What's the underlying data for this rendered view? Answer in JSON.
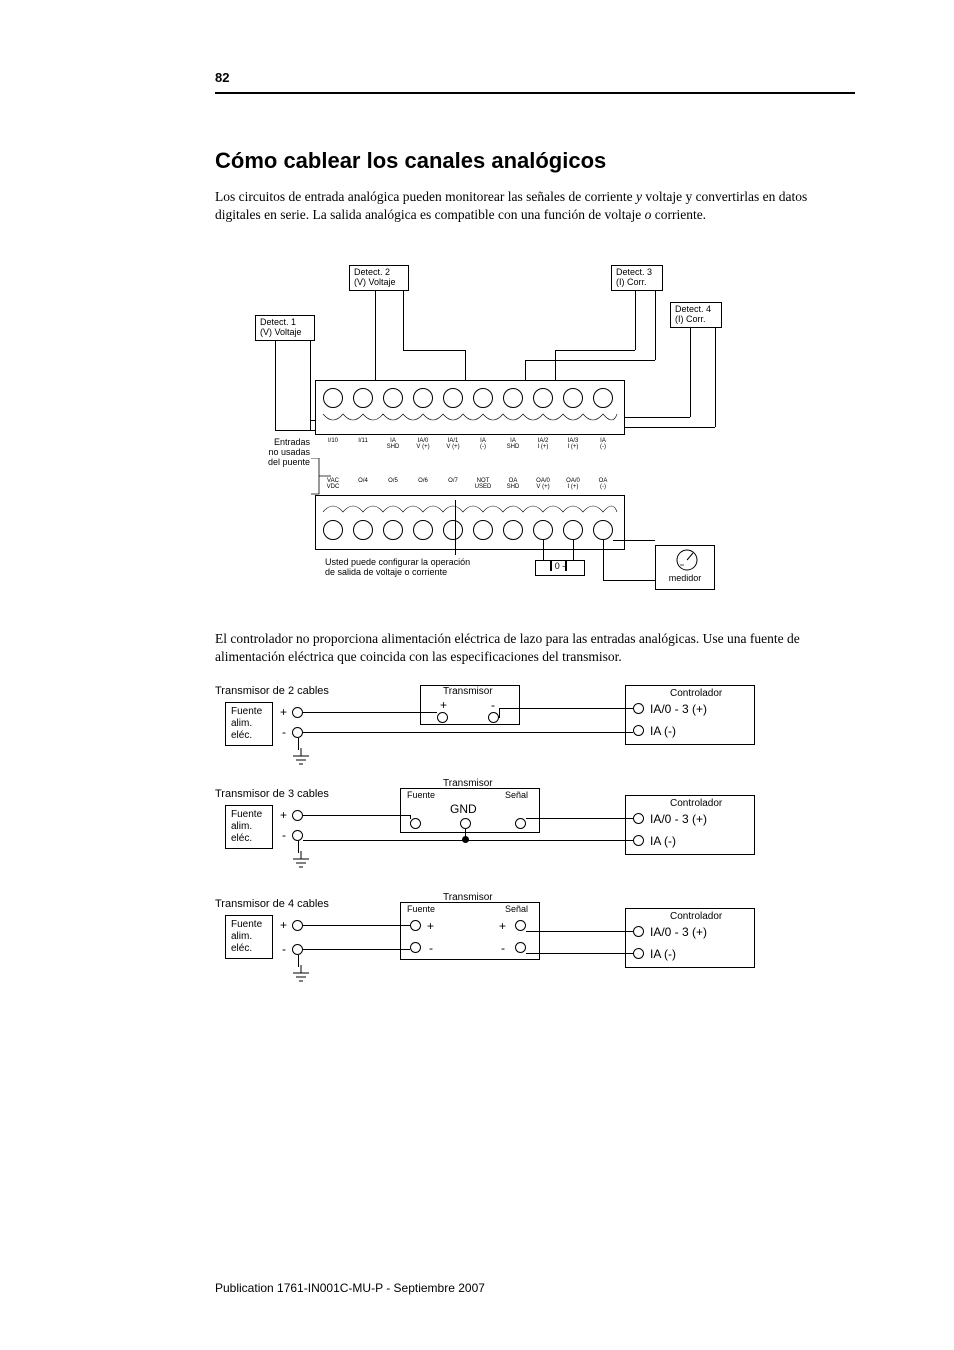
{
  "page_number": "82",
  "heading": "Cómo cablear los canales analógicos",
  "paragraph1_parts": {
    "a": "Los circuitos de entrada analógica pueden monitorear las señales de corriente ",
    "y": "y",
    "b": " voltaje y convertirlas en datos digitales en serie. La salida analógica es compatible con una función de voltaje ",
    "o": "o",
    "c": " corriente."
  },
  "diagram1": {
    "detect1": "Detect. 1\n(V) Voltaje",
    "detect2": "Detect. 2\n(V) Voltaje",
    "detect3": "Detect. 3\n(I) Corr.",
    "detect4": "Detect. 4\n(I) Corr.",
    "entries_label": "Entradas\nno usadas\ndel puente",
    "config_label": "Usted puede configurar la operación\nde salida de voltaje o corriente",
    "jumper_label": "0 -",
    "meter_label": "medidor",
    "top_terms": [
      "I/10",
      "I/11",
      "IA\nSHD",
      "IA/0\nV (+)",
      "IA/1\nV (+)",
      "IA\n(-)",
      "IA\nSHD",
      "IA/2\nI (+)",
      "IA/3\nI (+)",
      "IA\n(-)"
    ],
    "bot_terms": [
      "VAC\nVDC",
      "O/4",
      "O/5",
      "O/6",
      "O/7",
      "NOT\nUSED",
      "OA\nSHD",
      "OA/0\nV (+)",
      "OA/0\nI (+)",
      "OA\n(-)"
    ]
  },
  "paragraph2": "El controlador no proporciona alimentación eléctrica de lazo para las entradas analógicas. Use una fuente de alimentación eléctrica que coincida con las especificaciones del transmisor.",
  "diagram2": {
    "sec2": "Transmisor de 2 cables",
    "sec3": "Transmisor de 3 cables",
    "sec4": "Transmisor de 4 cables",
    "ps": "Fuente\nalim.\neléc.",
    "tx": "Transmisor",
    "tx_supply": "Fuente",
    "tx_signal": "Señal",
    "gnd_label": "GND",
    "ctrl": "Controlador",
    "ia_pos": "IA/0 - 3 (+)",
    "ia_neg": "IA (-)",
    "plus": "+",
    "minus": "-"
  },
  "footer": "Publication 1761-IN001C-MU-P - Septiembre 2007"
}
